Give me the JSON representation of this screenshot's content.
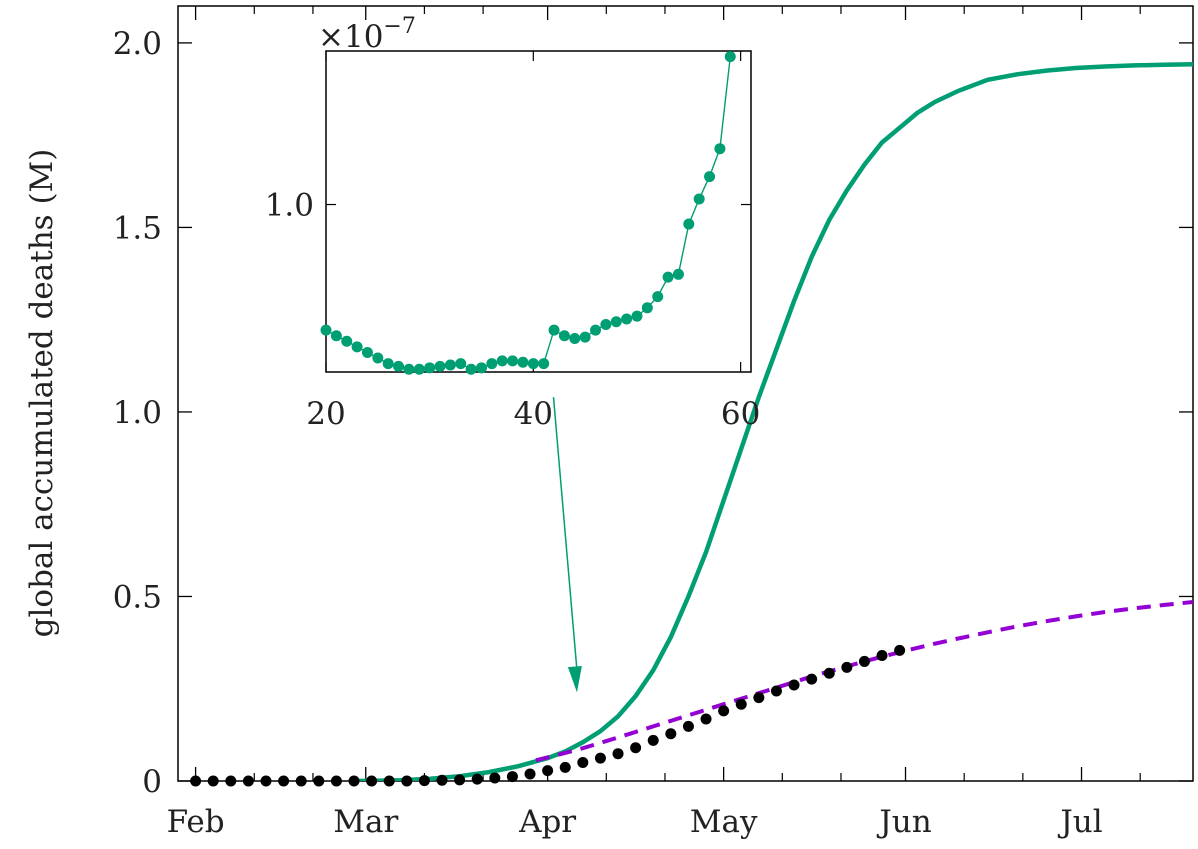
{
  "colors": {
    "model_fit": "#009e73",
    "continuation": "#9400d3",
    "observed": "#000000",
    "inset_series": "#009e73",
    "axis": "#000000"
  },
  "chart_data": [
    {
      "type": "line",
      "xlabel": "",
      "ylabel": "global accumulated deaths (M)",
      "x_unit": "days since Feb 1",
      "xlim": [
        -3,
        170
      ],
      "ylim": [
        0,
        2.1
      ],
      "x_ticks": [
        {
          "label": "Feb",
          "value": 0
        },
        {
          "label": "Mar",
          "value": 29
        },
        {
          "label": "Apr",
          "value": 60
        },
        {
          "label": "May",
          "value": 90
        },
        {
          "label": "Jun",
          "value": 121
        },
        {
          "label": "Jul",
          "value": 151
        }
      ],
      "x_minor_ticks": [
        10,
        20,
        39,
        49,
        70,
        80,
        100,
        110,
        131,
        141,
        161
      ],
      "y_ticks": [
        {
          "label": "0",
          "value": 0
        },
        {
          "label": "0.5",
          "value": 0.5
        },
        {
          "label": "1.0",
          "value": 1.0
        },
        {
          "label": "1.5",
          "value": 1.5
        },
        {
          "label": "2.0",
          "value": 2.0
        }
      ],
      "series": [
        {
          "style": "solid",
          "x": [
            27,
            35,
            40,
            45,
            50,
            55,
            60,
            63,
            66,
            69,
            72,
            75,
            78,
            81,
            84,
            87,
            90,
            93,
            96,
            99,
            102,
            105,
            108,
            111,
            114,
            117,
            120,
            123,
            126,
            130,
            135,
            140,
            145,
            150,
            155,
            160,
            165,
            170
          ],
          "y": [
            0.0,
            0.002,
            0.006,
            0.013,
            0.024,
            0.04,
            0.062,
            0.08,
            0.105,
            0.135,
            0.175,
            0.23,
            0.3,
            0.39,
            0.5,
            0.62,
            0.76,
            0.9,
            1.04,
            1.17,
            1.3,
            1.42,
            1.52,
            1.6,
            1.67,
            1.73,
            1.77,
            1.81,
            1.84,
            1.87,
            1.9,
            1.915,
            1.925,
            1.932,
            1.936,
            1.939,
            1.941,
            1.942
          ]
        },
        {
          "style": "dashed",
          "x": [
            58,
            62,
            66,
            70,
            74,
            78,
            82,
            86,
            90,
            94,
            98,
            102,
            106,
            110,
            114,
            118,
            122,
            126,
            130,
            135,
            140,
            145,
            150,
            155,
            160,
            165,
            170
          ],
          "y": [
            0.056,
            0.072,
            0.089,
            0.108,
            0.128,
            0.148,
            0.168,
            0.188,
            0.208,
            0.228,
            0.248,
            0.268,
            0.288,
            0.306,
            0.324,
            0.341,
            0.357,
            0.372,
            0.386,
            0.403,
            0.419,
            0.433,
            0.446,
            0.458,
            0.468,
            0.477,
            0.485
          ]
        },
        {
          "style": "points",
          "x": [
            0,
            3,
            6,
            9,
            12,
            15,
            18,
            21,
            24,
            27,
            30,
            33,
            36,
            39,
            42,
            45,
            48,
            51,
            54,
            57,
            60,
            63,
            66,
            69,
            72,
            75,
            78,
            81,
            84,
            87,
            90,
            93,
            96,
            99,
            102,
            105,
            108,
            111,
            114,
            117,
            120
          ],
          "y": [
            0,
            0,
            0,
            0,
            0,
            0,
            0,
            0,
            0,
            0,
            0,
            0,
            0,
            0.001,
            0.002,
            0.003,
            0.005,
            0.008,
            0.012,
            0.019,
            0.028,
            0.037,
            0.05,
            0.062,
            0.074,
            0.09,
            0.11,
            0.128,
            0.148,
            0.168,
            0.19,
            0.208,
            0.226,
            0.244,
            0.26,
            0.276,
            0.292,
            0.308,
            0.324,
            0.34,
            0.354
          ]
        }
      ],
      "annotation": {
        "type": "arrow",
        "from": [
          61,
          1.04
        ],
        "to": [
          65,
          0.24
        ]
      }
    },
    {
      "type": "scatter",
      "inset": true,
      "exponent_label": "×10",
      "exponent_power": "−7",
      "xlim": [
        20,
        61
      ],
      "ylim": [
        0.4,
        1.55
      ],
      "x_ticks": [
        {
          "label": "20",
          "value": 20
        },
        {
          "label": "40",
          "value": 40
        },
        {
          "label": "60",
          "value": 60
        }
      ],
      "y_ticks": [
        {
          "label": "1.0",
          "value": 1.0
        }
      ],
      "x": [
        20,
        21,
        22,
        23,
        24,
        25,
        26,
        27,
        28,
        29,
        30,
        31,
        32,
        33,
        34,
        35,
        36,
        37,
        38,
        39,
        40,
        41,
        42,
        43,
        44,
        45,
        46,
        47,
        48,
        49,
        50,
        51,
        52,
        53,
        54,
        55,
        56,
        57,
        58,
        59
      ],
      "y": [
        0.55,
        0.53,
        0.51,
        0.49,
        0.47,
        0.45,
        0.43,
        0.42,
        0.41,
        0.41,
        0.415,
        0.42,
        0.425,
        0.43,
        0.41,
        0.415,
        0.43,
        0.44,
        0.44,
        0.435,
        0.43,
        0.43,
        0.55,
        0.53,
        0.52,
        0.525,
        0.55,
        0.57,
        0.58,
        0.59,
        0.6,
        0.63,
        0.67,
        0.74,
        0.75,
        0.93,
        1.02,
        1.1,
        1.2,
        1.53
      ]
    }
  ]
}
